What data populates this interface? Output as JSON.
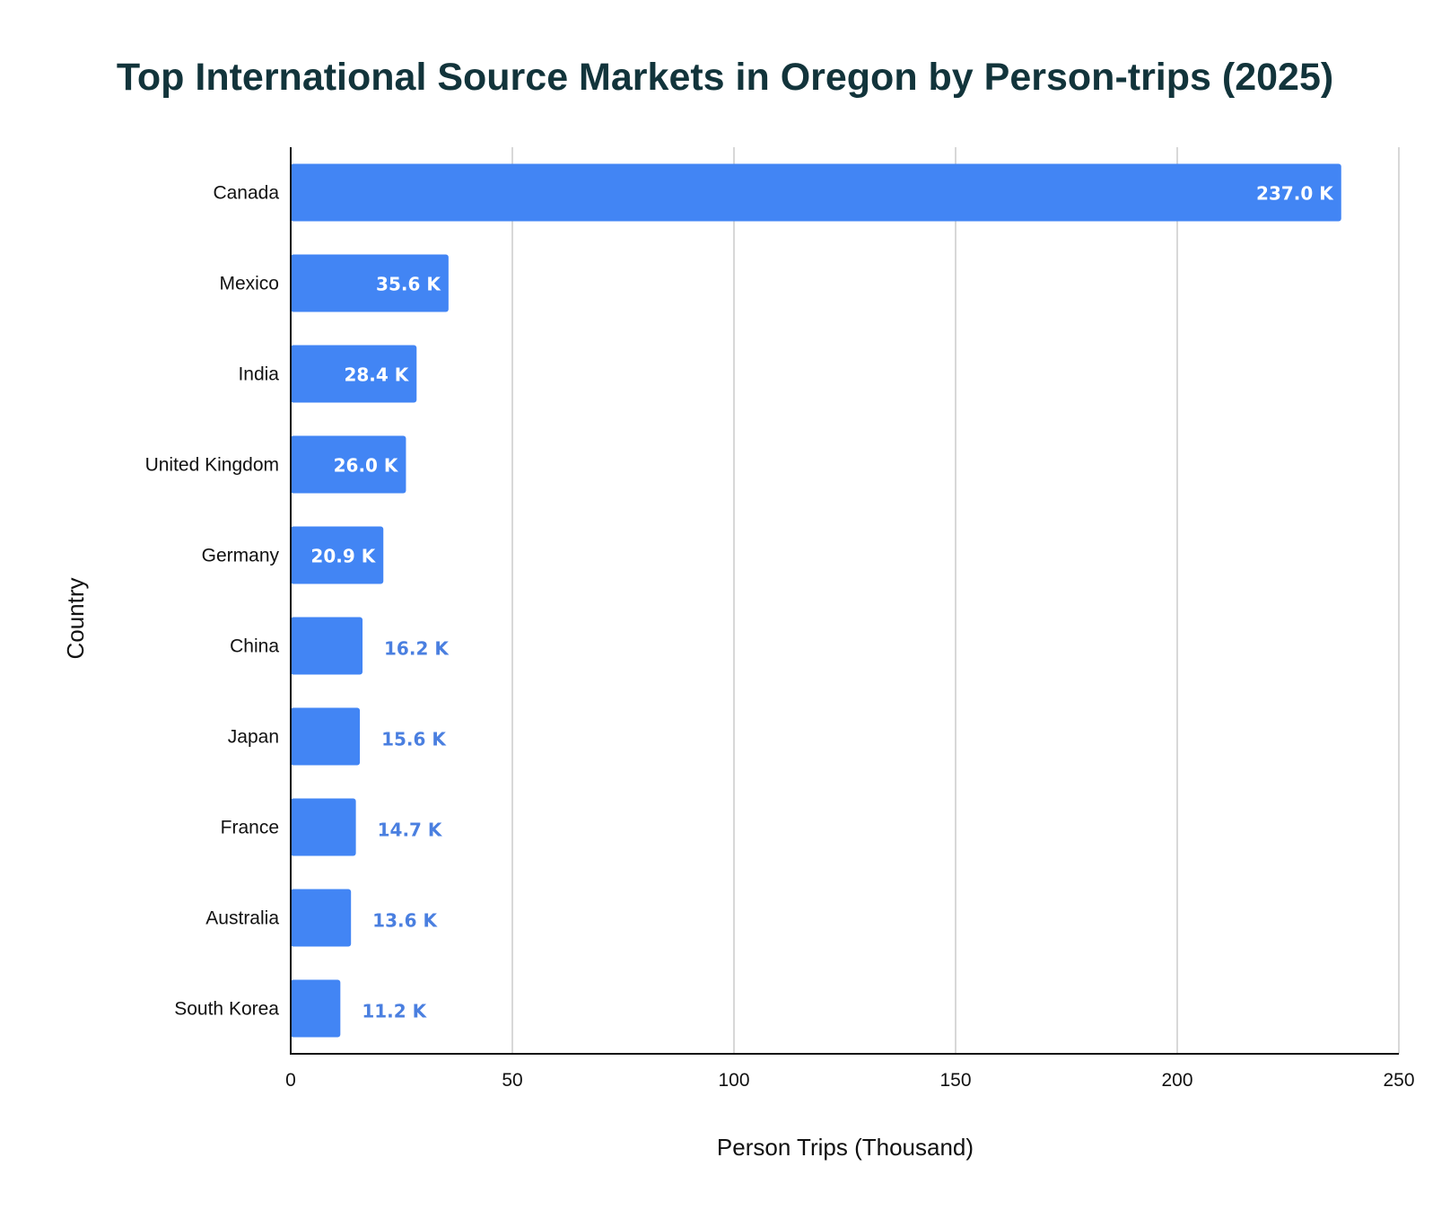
{
  "chart_data": {
    "type": "bar",
    "orientation": "horizontal",
    "title": "Top International Source Markets in Oregon by Person-trips (2025)",
    "xlabel": "Person Trips (Thousand)",
    "ylabel": "Country",
    "categories": [
      "Canada",
      "Mexico",
      "India",
      "United Kingdom",
      "Germany",
      "China",
      "Japan",
      "France",
      "Australia",
      "South Korea"
    ],
    "values": [
      237.0,
      35.6,
      28.4,
      26.0,
      20.9,
      16.2,
      15.6,
      14.7,
      13.6,
      11.2
    ],
    "data_labels": [
      "237.0 K",
      "35.6 K",
      "28.4 K",
      "26.0 K",
      "20.9 K",
      "16.2 K",
      "15.6 K",
      "14.7 K",
      "13.6 K",
      "11.2 K"
    ],
    "xlim": [
      0,
      250
    ],
    "x_ticks": [
      0,
      50,
      100,
      150,
      200,
      250
    ],
    "grid": "vertical",
    "legend": "none",
    "colors": {
      "bar": "#4285f4",
      "label_inside": "#ffffff",
      "label_outside": "#4a7fe0",
      "title": "#12343b",
      "grid": "#cccccc"
    }
  }
}
